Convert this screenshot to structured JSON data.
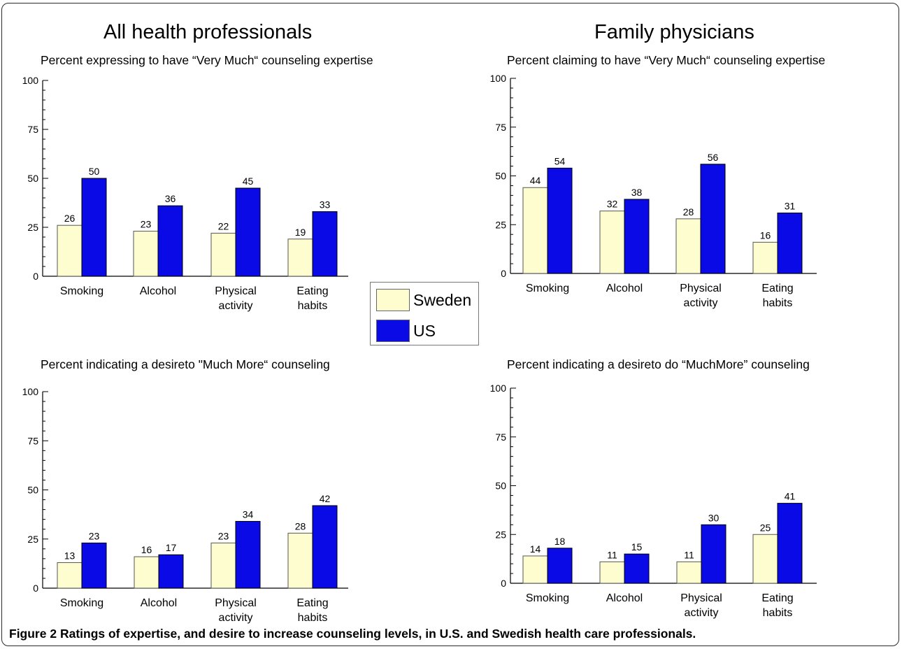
{
  "groups": {
    "left_title": "All health professionals",
    "right_title": "Family physicians"
  },
  "legend": {
    "items": [
      {
        "label": "Sweden",
        "color": "#fefdd0"
      },
      {
        "label": "US",
        "color": "#0a0ae6"
      }
    ]
  },
  "caption": {
    "label": "Figure 2",
    "text": "Ratings of expertise, and desire to increase counseling levels, in U.S. and Swedish health care professionals."
  },
  "chart_data": [
    {
      "type": "bar",
      "title": "Percent expressing to have “Very Much“ counseling expertise",
      "categories": [
        "Smoking",
        "Alcohol",
        "Physical activity",
        "Eating habits"
      ],
      "category_lines": [
        [
          "Smoking"
        ],
        [
          "Alcohol"
        ],
        [
          "Physical",
          "activity"
        ],
        [
          "Eating",
          "habits"
        ]
      ],
      "series": [
        {
          "name": "Sweden",
          "values": [
            26,
            23,
            22,
            19
          ]
        },
        {
          "name": "US",
          "values": [
            50,
            36,
            45,
            33
          ]
        }
      ],
      "ylim": [
        0,
        100
      ],
      "yticks": [
        0,
        25,
        50,
        75,
        100
      ]
    },
    {
      "type": "bar",
      "title": "Percent claiming to have “Very Much“ counseling expertise",
      "categories": [
        "Smoking",
        "Alcohol",
        "Physical activity",
        "Eating habits"
      ],
      "category_lines": [
        [
          "Smoking"
        ],
        [
          "Alcohol"
        ],
        [
          "Physical",
          "activity"
        ],
        [
          "Eating",
          "habits"
        ]
      ],
      "series": [
        {
          "name": "Sweden",
          "values": [
            44,
            32,
            28,
            16
          ]
        },
        {
          "name": "US",
          "values": [
            54,
            38,
            56,
            31
          ]
        }
      ],
      "ylim": [
        0,
        100
      ],
      "yticks": [
        0,
        25,
        50,
        75,
        100
      ]
    },
    {
      "type": "bar",
      "title": "Percent indicating a desireto \"Much More“ counseling",
      "categories": [
        "Smoking",
        "Alcohol",
        "Physical activity",
        "Eating habits"
      ],
      "category_lines": [
        [
          "Smoking"
        ],
        [
          "Alcohol"
        ],
        [
          "Physical",
          "activity"
        ],
        [
          "Eating",
          "habits"
        ]
      ],
      "series": [
        {
          "name": "Sweden",
          "values": [
            13,
            16,
            23,
            28
          ]
        },
        {
          "name": "US",
          "values": [
            23,
            17,
            34,
            42
          ]
        }
      ],
      "ylim": [
        0,
        100
      ],
      "yticks": [
        0,
        25,
        50,
        75,
        100
      ]
    },
    {
      "type": "bar",
      "title": "Percent indicating a desireto do “MuchMore” counseling",
      "categories": [
        "Smoking",
        "Alcohol",
        "Physical activity",
        "Eating habits"
      ],
      "category_lines": [
        [
          "Smoking"
        ],
        [
          "Alcohol"
        ],
        [
          "Physical",
          "activity"
        ],
        [
          "Eating",
          "habits"
        ]
      ],
      "series": [
        {
          "name": "Sweden",
          "values": [
            14,
            11,
            11,
            25
          ]
        },
        {
          "name": "US",
          "values": [
            18,
            15,
            30,
            41
          ]
        }
      ],
      "ylim": [
        0,
        100
      ],
      "yticks": [
        0,
        25,
        50,
        75,
        100
      ]
    }
  ]
}
